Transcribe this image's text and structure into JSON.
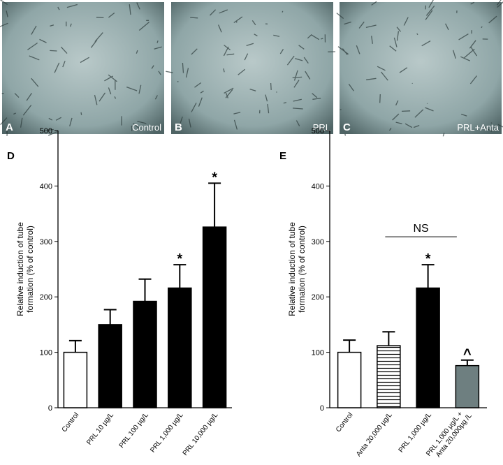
{
  "images": [
    {
      "letter": "A",
      "label": "Control"
    },
    {
      "letter": "B",
      "label": "PRL"
    },
    {
      "letter": "C",
      "label": "PRL+Anta"
    }
  ],
  "chart_data": [
    {
      "type": "bar",
      "panel": "D",
      "ylabel": [
        "Relative induction of tube",
        "formation (% of control)"
      ],
      "categories": [
        "Control",
        "PRL 10 µg/L",
        "PRL 100 µg/L",
        "PRL 1,000 µg/L",
        "PRL 10,000 µg/L"
      ],
      "values": [
        100,
        150,
        192,
        216,
        326
      ],
      "errors": [
        21,
        27,
        40,
        42,
        79
      ],
      "markers": [
        null,
        null,
        null,
        "*",
        "*"
      ],
      "colors": [
        "#ffffff",
        "#000000",
        "#000000",
        "#000000",
        "#000000"
      ],
      "hatch": [
        false,
        false,
        false,
        false,
        false
      ],
      "ylim": [
        0,
        500
      ],
      "yticks": [
        0,
        100,
        200,
        300,
        400,
        500
      ]
    },
    {
      "type": "bar",
      "panel": "E",
      "ylabel": [
        "Relative induction of tube",
        "formation (% of control)"
      ],
      "categories": [
        "Control",
        "Anta 20,000 µg/L",
        "PRL 1,000 µg/L",
        [
          "PRL 1,000 µg/L +",
          "Anta 20,000µg /L"
        ]
      ],
      "values": [
        100,
        112,
        216,
        76
      ],
      "errors": [
        22,
        25,
        42,
        10
      ],
      "markers": [
        null,
        null,
        "*",
        "^"
      ],
      "colors": [
        "#ffffff",
        "#ffffff",
        "#000000",
        "#6e7f80"
      ],
      "hatch": [
        false,
        true,
        false,
        false
      ],
      "bracket": {
        "label": "NS",
        "from": 1,
        "to": 3
      },
      "ylim": [
        0,
        500
      ],
      "yticks": [
        0,
        100,
        200,
        300,
        400,
        500
      ]
    }
  ]
}
